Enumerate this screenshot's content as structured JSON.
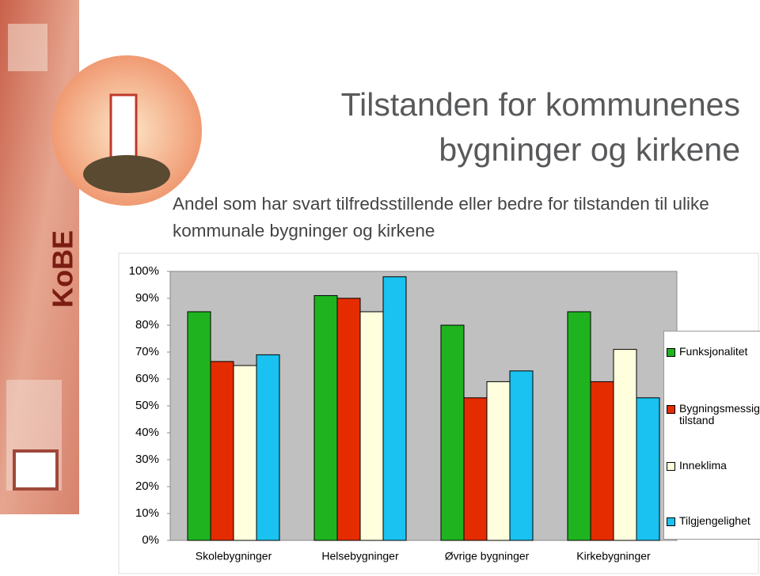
{
  "logo_text": "KoBE",
  "chart_data": {
    "type": "bar",
    "title": "Tilstanden for kommunenes bygninger og kirkene",
    "subtitle": "Andel som har svart tilfredsstillende eller bedre for tilstanden til ulike kommunale bygninger og kirkene",
    "categories": [
      "Skolebygninger",
      "Helsebygninger",
      "Øvrige bygninger",
      "Kirkebygninger"
    ],
    "series": [
      {
        "name": "Funksjonalitet",
        "color": "#1fb41f",
        "values": [
          85,
          91,
          80,
          85
        ]
      },
      {
        "name": "Bygningsmessig tilstand",
        "color": "#e52c00",
        "values": [
          66.5,
          90,
          53,
          59
        ]
      },
      {
        "name": "Inneklima",
        "color": "#ffffdd",
        "values": [
          65,
          85,
          59,
          71
        ]
      },
      {
        "name": "Tilgjengelighet",
        "color": "#19c2f0",
        "values": [
          69,
          98,
          63,
          53
        ]
      }
    ],
    "ylim": [
      0,
      100
    ],
    "yticks": [
      {
        "value": 0,
        "label": "0%"
      },
      {
        "value": 10,
        "label": "10%"
      },
      {
        "value": 20,
        "label": "20%"
      },
      {
        "value": 30,
        "label": "30%"
      },
      {
        "value": 40,
        "label": "40%"
      },
      {
        "value": 50,
        "label": "50%"
      },
      {
        "value": 60,
        "label": "60%"
      },
      {
        "value": 70,
        "label": "70%"
      },
      {
        "value": 80,
        "label": "80%"
      },
      {
        "value": 90,
        "label": "90%"
      },
      {
        "value": 100,
        "label": "100%"
      }
    ],
    "grid": false,
    "legend": "right"
  }
}
